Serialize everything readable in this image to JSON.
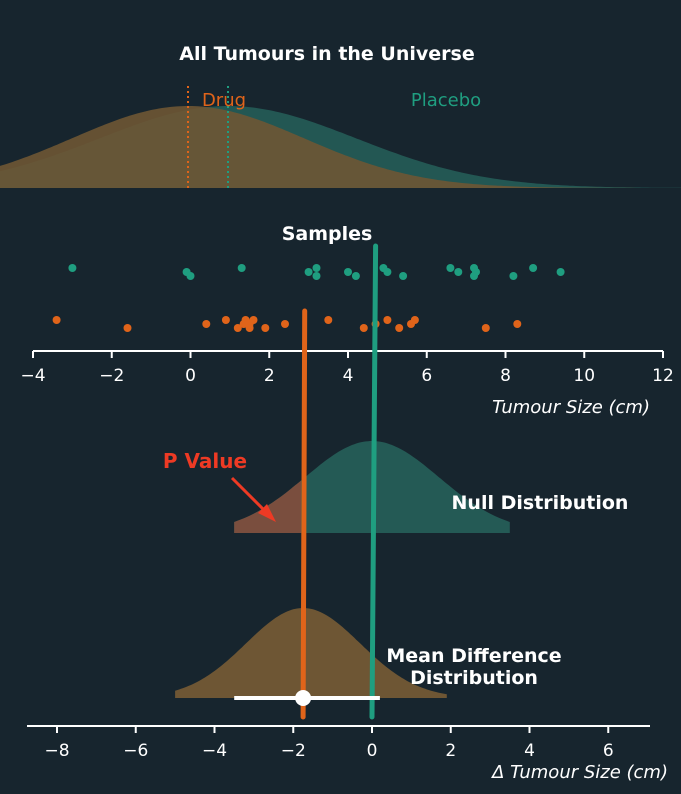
{
  "colors": {
    "background": "#17252e",
    "drug": "#e0641a",
    "placebo": "#1f9e80",
    "drug_fill": "#6e5634",
    "placebo_fill": "#245a55",
    "pvalue": "#ee3a24",
    "text": "#ffffff"
  },
  "chart_data": [
    {
      "type": "area",
      "title": "All Tumours in the Universe",
      "series": [
        {
          "name": "Drug",
          "mean": 2.9,
          "sd": 2.9
        },
        {
          "name": "Placebo",
          "mean": 3.9,
          "sd": 3.2
        }
      ]
    },
    {
      "type": "scatter",
      "title": "Samples",
      "xlabel": "Tumour Size (cm)",
      "xlim": [
        -4,
        12
      ],
      "xticks": [
        "−4",
        "−2",
        "0",
        "2",
        "4",
        "6",
        "8",
        "10",
        "12"
      ],
      "series": [
        {
          "name": "Placebo",
          "values": [
            -3.0,
            -0.1,
            0.0,
            1.3,
            3.0,
            3.2,
            3.2,
            4.0,
            4.2,
            4.9,
            5.0,
            5.4,
            6.6,
            6.8,
            7.2,
            7.2,
            7.25,
            8.2,
            8.7,
            9.4
          ],
          "mean": 4.7
        },
        {
          "name": "Drug",
          "values": [
            -3.4,
            -1.6,
            0.4,
            0.9,
            1.2,
            1.35,
            1.4,
            1.5,
            1.5,
            1.6,
            1.9,
            2.4,
            3.5,
            4.4,
            4.7,
            5.0,
            5.3,
            5.6,
            5.7,
            7.5,
            8.3
          ],
          "mean": 2.9
        }
      ]
    },
    {
      "type": "area",
      "series": [
        {
          "name": "Null Distribution",
          "mean": 0,
          "sd": 1.7,
          "p_value_region_upper_bound": -1.8
        }
      ],
      "annotations": [
        "P Value"
      ]
    },
    {
      "type": "area",
      "xlabel": "Δ Tumour Size (cm)",
      "xlim": [
        -8.8,
        7
      ],
      "xticks": [
        "−8",
        "−6",
        "−4",
        "−2",
        "0",
        "2",
        "4",
        "6"
      ],
      "series": [
        {
          "name": "Mean Difference Distribution",
          "mean": -1.75,
          "sd": 1.45
        }
      ],
      "point_estimate": -1.75,
      "interval": [
        -3.5,
        0.2
      ]
    }
  ],
  "labels": {
    "universe_title": "All Tumours in the Universe",
    "drug": "Drug",
    "placebo": "Placebo",
    "samples_title": "Samples",
    "x_axis_title": "Tumour Size (cm)",
    "p_value": "P Value",
    "null_distribution": "Null Distribution",
    "mean_diff_line1": "Mean Difference",
    "mean_diff_line2": "Distribution",
    "delta_axis_title": "Δ Tumour Size (cm)"
  }
}
